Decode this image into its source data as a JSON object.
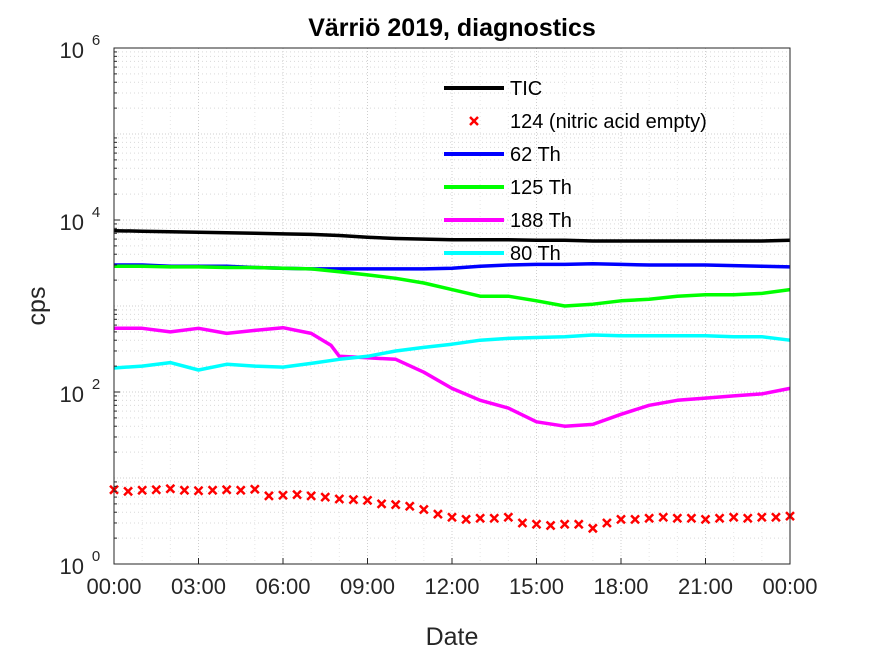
{
  "chart_data": {
    "type": "line",
    "title": "Värriö 2019, diagnostics",
    "xlabel": "Date",
    "ylabel": "cps",
    "yscale": "log",
    "xlim_hours": [
      0,
      24
    ],
    "ylim": [
      1,
      1000000
    ],
    "grid": true,
    "legend_position": "top-center",
    "x_tick_hours": [
      0,
      3,
      6,
      9,
      12,
      15,
      18,
      21,
      24
    ],
    "x_tick_labels": [
      "00:00",
      "03:00",
      "06:00",
      "09:00",
      "12:00",
      "15:00",
      "18:00",
      "21:00",
      "00:00"
    ],
    "y_ticks": [
      {
        "value": 1,
        "base": "10",
        "exp": "0"
      },
      {
        "value": 100,
        "base": "10",
        "exp": "2"
      },
      {
        "value": 10000,
        "base": "10",
        "exp": "4"
      },
      {
        "value": 1000000,
        "base": "10",
        "exp": "6"
      }
    ],
    "series": [
      {
        "name": "TIC",
        "color": "#000000",
        "style": "line",
        "x": [
          0,
          1,
          2,
          3,
          4,
          5,
          6,
          7,
          8,
          9,
          10,
          11,
          12,
          13,
          14,
          15,
          16,
          17,
          18,
          19,
          20,
          21,
          22,
          23,
          24
        ],
        "y": [
          7500,
          7400,
          7300,
          7200,
          7100,
          7000,
          6900,
          6800,
          6600,
          6300,
          6100,
          6000,
          5900,
          5900,
          5900,
          5800,
          5800,
          5700,
          5700,
          5700,
          5700,
          5700,
          5700,
          5700,
          5800
        ]
      },
      {
        "name": "124 (nitric acid empty)",
        "color": "#ff0000",
        "style": "marker",
        "x": [
          0,
          0.5,
          1,
          1.5,
          2,
          2.5,
          3,
          3.5,
          4,
          4.5,
          5,
          5.5,
          6,
          6.5,
          7,
          7.5,
          8,
          8.5,
          9,
          9.5,
          10,
          10.5,
          11,
          11.5,
          12,
          12.5,
          13,
          13.5,
          14,
          14.5,
          15,
          15.5,
          16,
          16.5,
          17,
          17.5,
          18,
          18.5,
          19,
          19.5,
          20,
          20.5,
          21,
          21.5,
          22,
          22.5,
          23,
          23.5,
          24
        ],
        "y": [
          7.3,
          7.0,
          7.2,
          7.3,
          7.5,
          7.2,
          7.1,
          7.2,
          7.3,
          7.2,
          7.4,
          6.2,
          6.3,
          6.4,
          6.2,
          6.0,
          5.7,
          5.6,
          5.5,
          5.0,
          4.9,
          4.7,
          4.3,
          3.8,
          3.5,
          3.3,
          3.4,
          3.4,
          3.5,
          3.0,
          2.9,
          2.8,
          2.9,
          2.9,
          2.6,
          3.0,
          3.3,
          3.3,
          3.4,
          3.5,
          3.4,
          3.4,
          3.3,
          3.4,
          3.5,
          3.4,
          3.5,
          3.5,
          3.6
        ]
      },
      {
        "name": "62 Th",
        "color": "#0000ff",
        "style": "line",
        "x": [
          0,
          1,
          2,
          3,
          4,
          5,
          6,
          7,
          8,
          9,
          10,
          11,
          12,
          13,
          14,
          15,
          16,
          17,
          18,
          19,
          20,
          21,
          22,
          23,
          24
        ],
        "y": [
          3000,
          3000,
          2900,
          2900,
          2900,
          2800,
          2750,
          2700,
          2700,
          2700,
          2700,
          2700,
          2750,
          2900,
          3000,
          3050,
          3050,
          3100,
          3050,
          3000,
          3000,
          3000,
          2950,
          2900,
          2850
        ]
      },
      {
        "name": "125 Th",
        "color": "#00ff00",
        "style": "line",
        "x": [
          0,
          1,
          2,
          3,
          4,
          5,
          6,
          7,
          8,
          9,
          10,
          11,
          12,
          13,
          14,
          15,
          16,
          17,
          18,
          19,
          20,
          21,
          22,
          23,
          24
        ],
        "y": [
          2900,
          2900,
          2850,
          2850,
          2800,
          2800,
          2750,
          2700,
          2500,
          2300,
          2100,
          1850,
          1550,
          1300,
          1300,
          1150,
          1000,
          1050,
          1150,
          1200,
          1300,
          1350,
          1350,
          1400,
          1550
        ]
      },
      {
        "name": "188 Th",
        "color": "#ff00ff",
        "style": "line",
        "x": [
          0,
          1,
          2,
          3,
          4,
          5,
          6,
          7,
          7.7,
          8,
          9,
          10,
          11,
          12,
          13,
          14,
          15,
          16,
          17,
          18,
          19,
          20,
          21,
          22,
          23,
          24
        ],
        "y": [
          550,
          550,
          500,
          550,
          480,
          520,
          560,
          480,
          350,
          260,
          250,
          240,
          170,
          110,
          80,
          65,
          45,
          40,
          42,
          55,
          70,
          80,
          85,
          90,
          95,
          110
        ]
      },
      {
        "name": "80 Th",
        "color": "#00ffff",
        "style": "line",
        "x": [
          0,
          1,
          2,
          3,
          4,
          5,
          6,
          7,
          8,
          9,
          10,
          11,
          12,
          13,
          14,
          15,
          16,
          17,
          18,
          19,
          20,
          21,
          22,
          23,
          24
        ],
        "y": [
          190,
          200,
          220,
          180,
          210,
          200,
          195,
          215,
          240,
          260,
          300,
          330,
          360,
          400,
          420,
          430,
          440,
          460,
          450,
          450,
          450,
          450,
          440,
          440,
          400
        ]
      }
    ]
  }
}
